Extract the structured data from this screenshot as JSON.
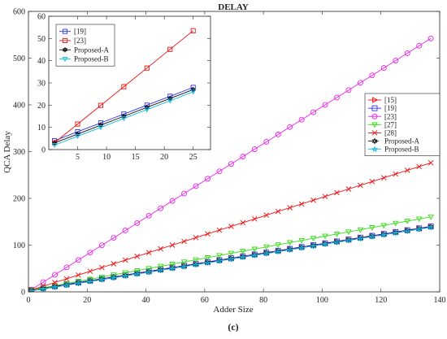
{
  "chart_data": [
    {
      "type": "line",
      "title": "DELAY",
      "xlabel": "Adder Size",
      "ylabel": "QCA Delay",
      "xlim": [
        0,
        140
      ],
      "ylim": [
        0,
        600
      ],
      "xticks": [
        0,
        20,
        40,
        60,
        80,
        100,
        120,
        140
      ],
      "yticks": [
        0,
        100,
        200,
        300,
        400,
        500,
        600
      ],
      "grid": false,
      "legend_position": "right",
      "x_start": 1,
      "x_end": 137,
      "x_step": 4,
      "series": [
        {
          "name": "[15]",
          "marker": "triangle-right",
          "color": "#ff0000",
          "dash": "",
          "intercept": 3,
          "slope": 1.0
        },
        {
          "name": "[19]",
          "marker": "square",
          "color": "#3333ee",
          "dash": "",
          "intercept": 3,
          "slope": 1.0
        },
        {
          "name": "[23]",
          "marker": "circle",
          "color": "#ee22ee",
          "dash": "",
          "intercept": 1,
          "slope": 3.95
        },
        {
          "name": "[27]",
          "marker": "triangle-down",
          "color": "#33dd11",
          "dash": "",
          "intercept": 3,
          "slope": 1.15
        },
        {
          "name": "[28]",
          "marker": "x",
          "color": "#ee1111",
          "dash": "",
          "intercept": 2,
          "slope": 2.0
        },
        {
          "name": "Proposed-A",
          "marker": "hexagram",
          "color": "#111111",
          "dash": "5,3",
          "intercept": 2,
          "slope": 1.0
        },
        {
          "name": "Proposed-B",
          "marker": "pentagram",
          "color": "#11bbdd",
          "dash": "",
          "intercept": 1,
          "slope": 1.0
        }
      ]
    },
    {
      "type": "line",
      "title": "",
      "xlabel": "",
      "ylabel": "",
      "xlim": [
        0,
        28
      ],
      "ylim": [
        0,
        60
      ],
      "xticks": [
        5,
        10,
        15,
        20,
        25
      ],
      "yticks": [
        0,
        10,
        20,
        30,
        40,
        50,
        60
      ],
      "grid": false,
      "legend_position": "top-left",
      "x_start": 1,
      "x_end": 25,
      "x_step": 4,
      "series": [
        {
          "name": "[19]",
          "marker": "square",
          "color": "#3333ee",
          "dash": "",
          "intercept": 3,
          "slope": 1.0
        },
        {
          "name": "[23]",
          "marker": "square",
          "color": "#ee1111",
          "dash": "",
          "intercept": 1,
          "slope": 2.1
        },
        {
          "name": "Proposed-A",
          "marker": "hexagram",
          "color": "#111111",
          "dash": "",
          "intercept": 2,
          "slope": 1.0
        },
        {
          "name": "Proposed-B",
          "marker": "triangle-down",
          "color": "#11bbdd",
          "dash": "",
          "intercept": 1,
          "slope": 1.0
        }
      ]
    }
  ],
  "caption": "(c)"
}
